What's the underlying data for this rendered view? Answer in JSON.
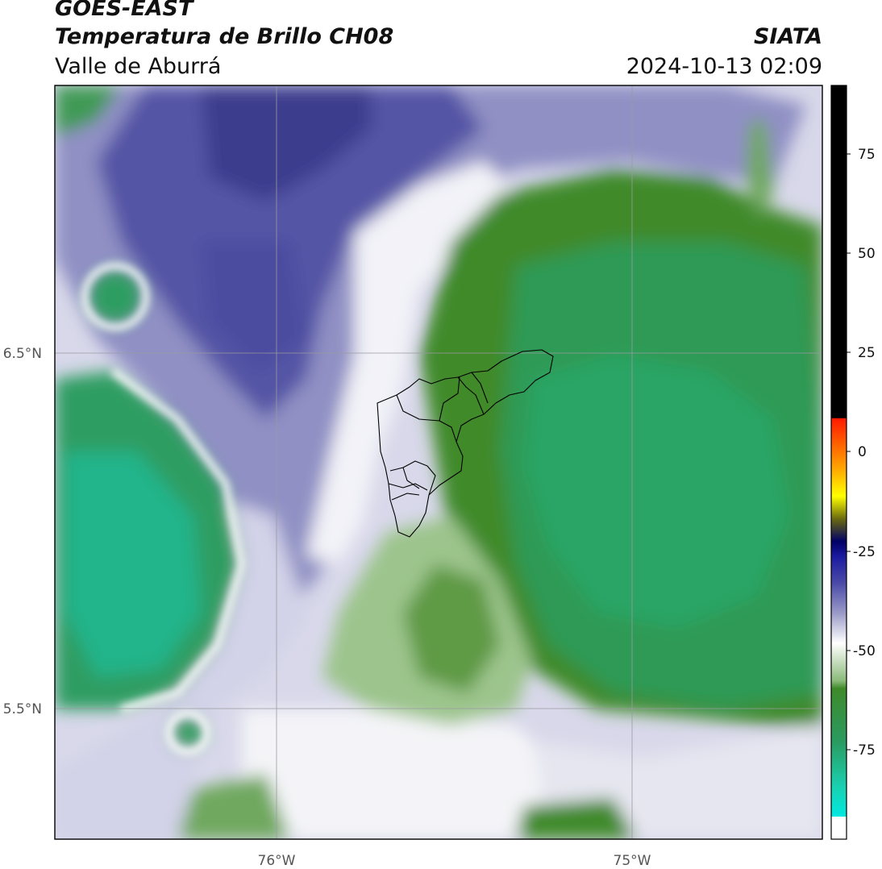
{
  "header": {
    "source": "GOES-EAST",
    "product": "Temperatura de Brillo CH08",
    "region": "Valle de Aburrá",
    "organization": "SIATA",
    "timestamp": "2024-10-13 02:09"
  },
  "map": {
    "lon_labels": [
      "76°W",
      "75°W"
    ],
    "lat_labels": [
      "6.5°N",
      "5.5°N"
    ],
    "colors": {
      "frame": "#000000",
      "gridline": "#9a9aa0",
      "boundary": "#000000",
      "cold_blue": "#3a3a8c",
      "mid_lavender": "#9a9ac8",
      "white": "#ffffff",
      "green_dark": "#3f8a2a",
      "green_teal": "#2aa568"
    }
  },
  "colorbar": {
    "tick_labels": [
      "75",
      "50",
      "25",
      "0",
      "-25",
      "-50",
      "-75"
    ]
  }
}
